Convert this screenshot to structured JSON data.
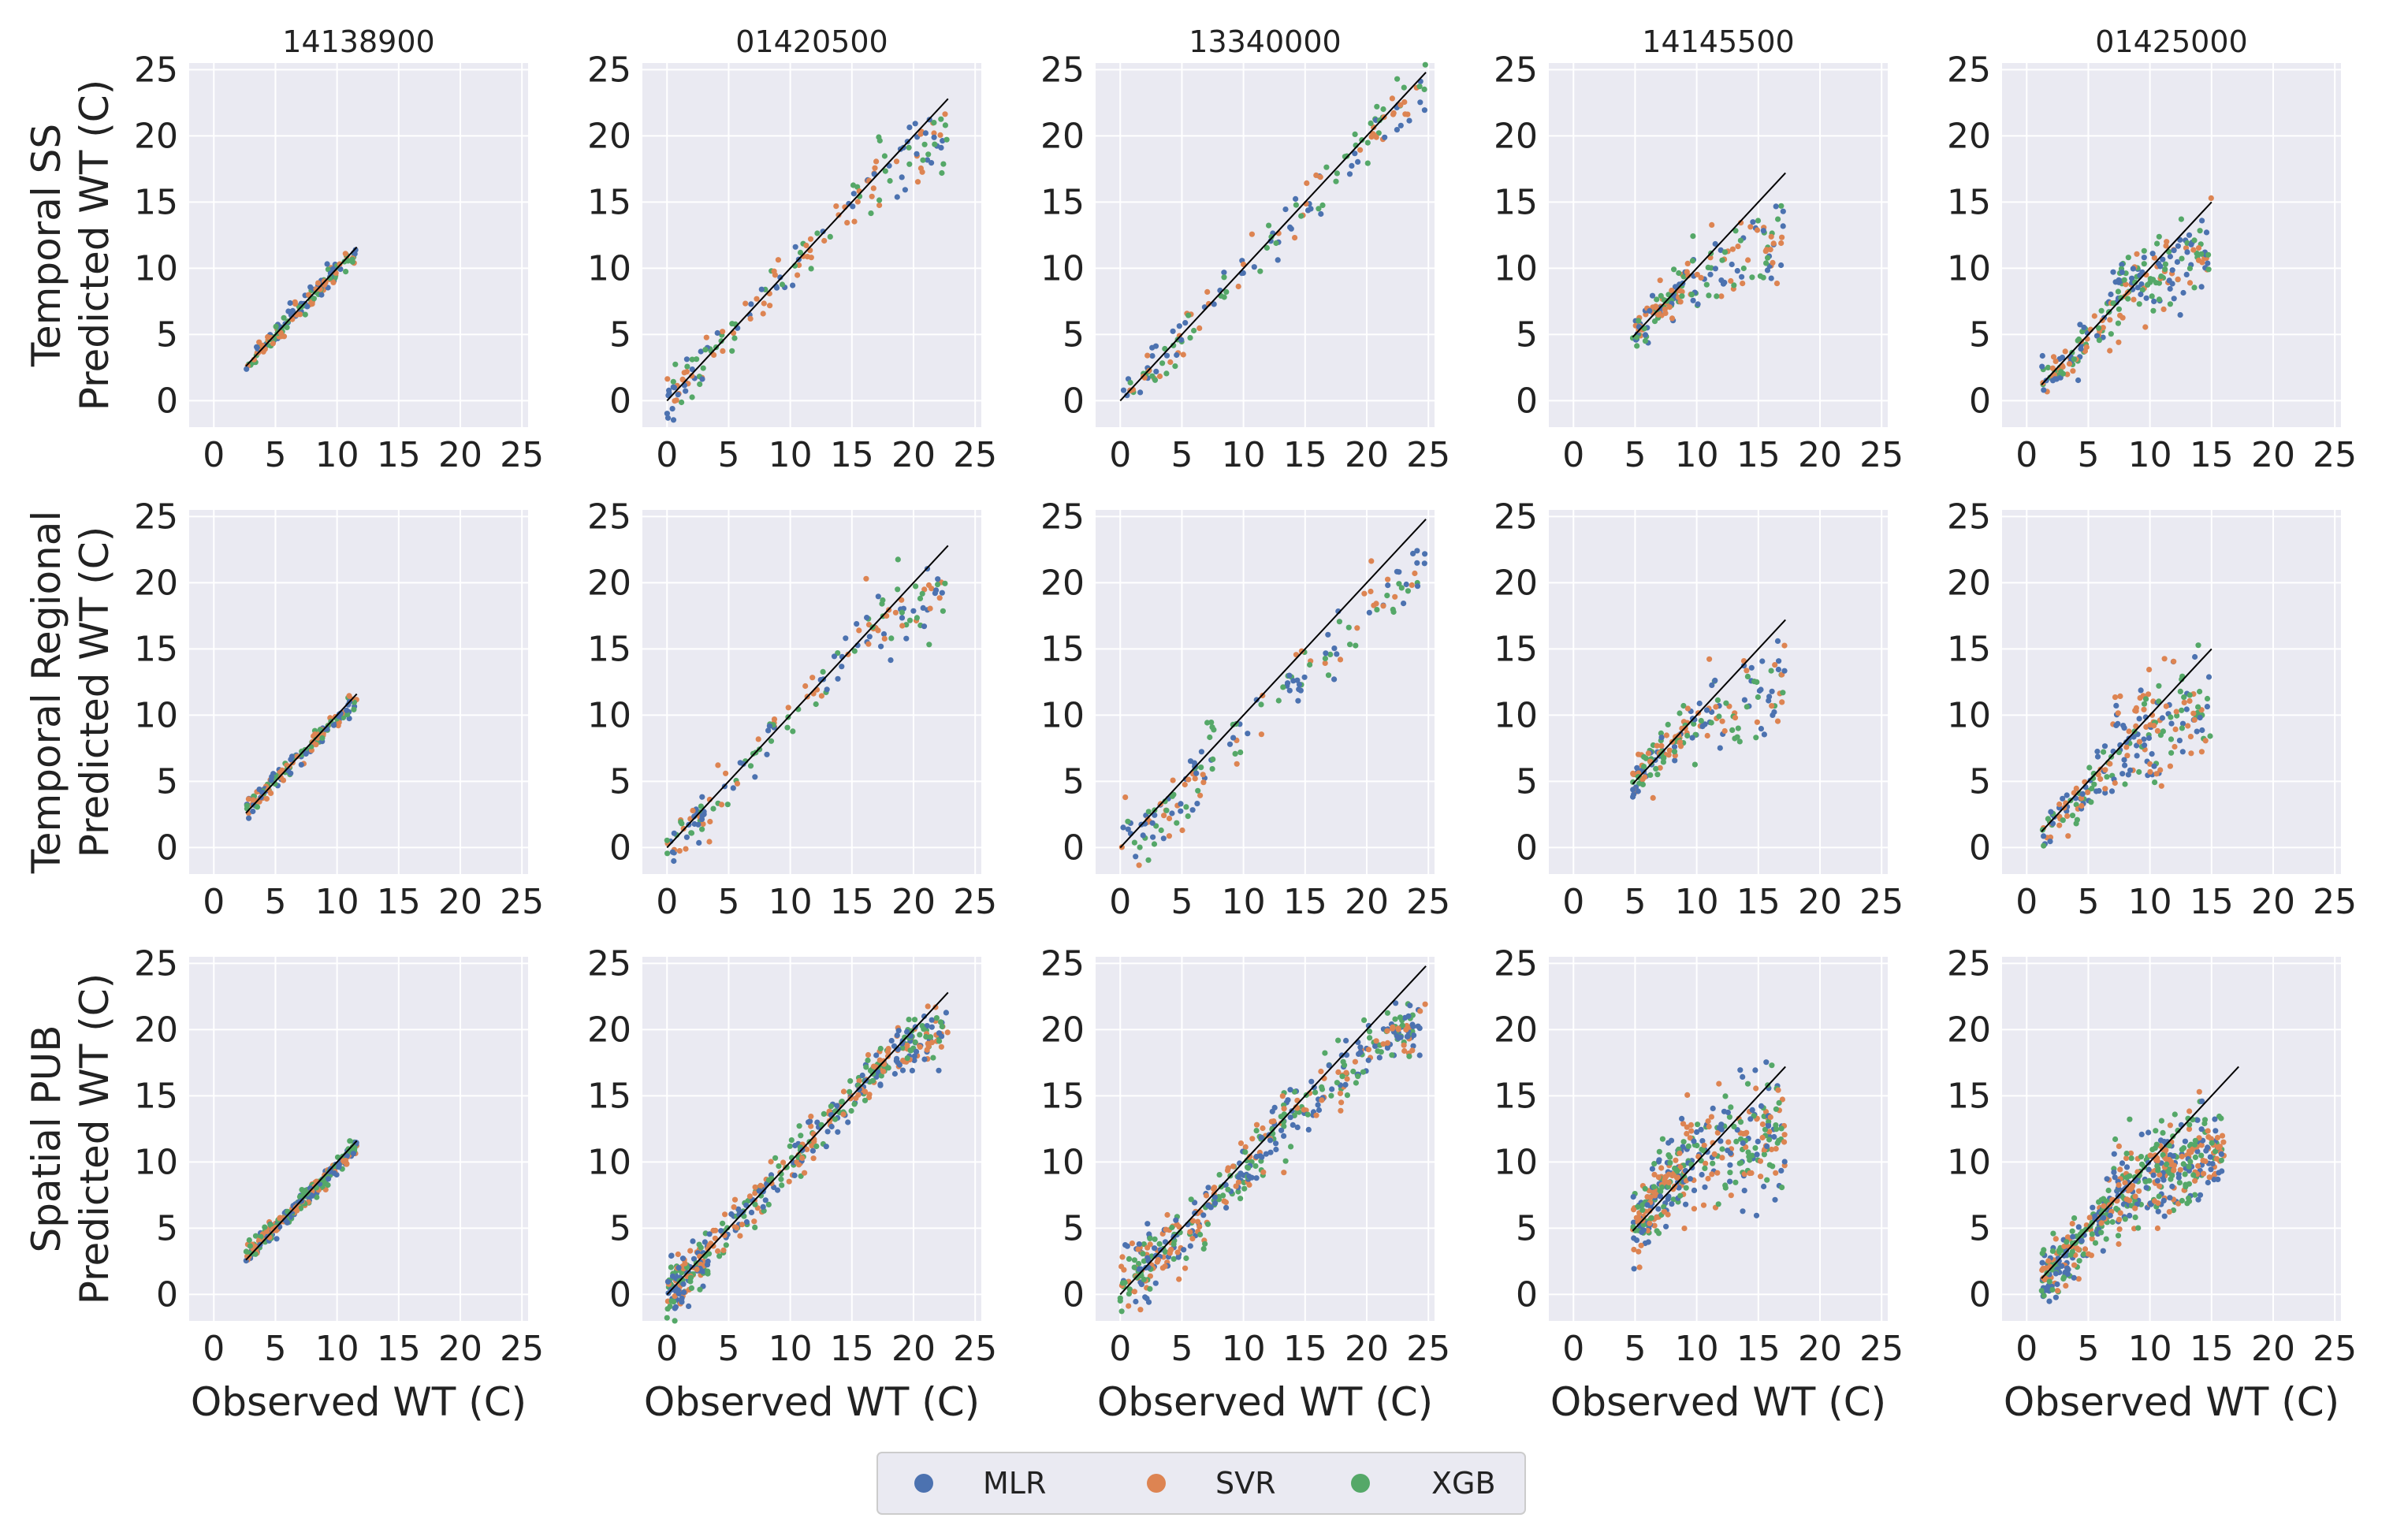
{
  "colors": {
    "panel_bg": "#eaeaf2",
    "grid": "#ffffff",
    "MLR": "#4c72b0",
    "SVR": "#dd8452",
    "XGB": "#55a868",
    "one_to_one_line": "#000000"
  },
  "x_axis_label": "Observed WT (C)",
  "y_axis_label": "Predicted WT (C)",
  "column_titles": [
    "14138900",
    "01420500",
    "13340000",
    "14145500",
    "01425000"
  ],
  "row_labels": [
    "Temporal SS",
    "Temporal Regional",
    "Spatial PUB"
  ],
  "legend": {
    "placement": "bottom-center",
    "entries": [
      {
        "label": "MLR",
        "color": "#4c72b0"
      },
      {
        "label": "SVR",
        "color": "#dd8452"
      },
      {
        "label": "XGB",
        "color": "#55a868"
      }
    ]
  },
  "chart_data": {
    "type": "scatter",
    "layout": "3 rows x 5 columns of scatter panels",
    "xlabel": "Observed WT (C)",
    "ylabel": "Predicted WT (C)",
    "xlim": [
      -2,
      25.5
    ],
    "ylim": [
      -2,
      25.5
    ],
    "xticks": [
      0,
      5,
      10,
      15,
      20,
      25
    ],
    "yticks": [
      0,
      5,
      10,
      15,
      20,
      25
    ],
    "grid": true,
    "legend_position": "bottom-center",
    "series": [
      {
        "name": "MLR"
      },
      {
        "name": "SVR"
      },
      {
        "name": "XGB"
      }
    ],
    "panels": [
      {
        "row": "Temporal SS",
        "column": "14138900",
        "one_to_one": [
          2.6,
          11.6
        ],
        "point_groups": [
          {
            "x": [
              2.6,
              11.6
            ],
            "y": [
              2.7,
              11.4
            ],
            "n": 150,
            "spread": 0.35
          },
          {
            "x": [
              5,
              10
            ],
            "y": [
              5.2,
              10.2
            ],
            "n": 20,
            "spread": 0.5
          }
        ]
      },
      {
        "row": "Temporal SS",
        "column": "01420500",
        "one_to_one": [
          0,
          22.8
        ],
        "point_groups": [
          {
            "x": [
              0,
              3
            ],
            "y": [
              0,
              2.8
            ],
            "n": 40,
            "spread": 0.8
          },
          {
            "x": [
              3,
              16
            ],
            "y": [
              3,
              16
            ],
            "n": 70,
            "spread": 0.8
          },
          {
            "x": [
              16,
              22.8
            ],
            "y": [
              16,
              20
            ],
            "n": 60,
            "spread": 1.2
          }
        ]
      },
      {
        "row": "Temporal SS",
        "column": "13340000",
        "one_to_one": [
          0,
          24.8
        ],
        "point_groups": [
          {
            "x": [
              0,
              6
            ],
            "y": [
              0,
              5.5
            ],
            "n": 50,
            "spread": 0.9
          },
          {
            "x": [
              6,
              20
            ],
            "y": [
              6,
              19.5
            ],
            "n": 60,
            "spread": 1.0
          },
          {
            "x": [
              20,
              24.8
            ],
            "y": [
              20,
              23.5
            ],
            "n": 40,
            "spread": 1.0
          }
        ]
      },
      {
        "row": "Temporal SS",
        "column": "14145500",
        "one_to_one": [
          4.8,
          17.2
        ],
        "point_groups": [
          {
            "x": [
              4.8,
              9
            ],
            "y": [
              5,
              8.5
            ],
            "n": 90,
            "spread": 0.8
          },
          {
            "x": [
              9,
              17.2
            ],
            "y": [
              9,
              12.5
            ],
            "n": 90,
            "spread": 1.6
          }
        ]
      },
      {
        "row": "Temporal SS",
        "column": "01425000",
        "one_to_one": [
          1.2,
          15
        ],
        "point_groups": [
          {
            "x": [
              1.2,
              7
            ],
            "y": [
              1.4,
              6.5
            ],
            "n": 80,
            "spread": 0.9
          },
          {
            "x": [
              7,
              15
            ],
            "y": [
              8,
              11.5
            ],
            "n": 140,
            "spread": 1.6
          }
        ]
      },
      {
        "row": "Temporal Regional",
        "column": "14138900",
        "one_to_one": [
          2.6,
          11.6
        ],
        "point_groups": [
          {
            "x": [
              2.6,
              11.6
            ],
            "y": [
              2.8,
              11.2
            ],
            "n": 150,
            "spread": 0.35
          }
        ]
      },
      {
        "row": "Temporal Regional",
        "column": "01420500",
        "one_to_one": [
          0,
          22.8
        ],
        "point_groups": [
          {
            "x": [
              0,
              3
            ],
            "y": [
              0,
              2.6
            ],
            "n": 40,
            "spread": 0.9
          },
          {
            "x": [
              3,
              16
            ],
            "y": [
              3,
              16
            ],
            "n": 60,
            "spread": 0.9
          },
          {
            "x": [
              16,
              22.8
            ],
            "y": [
              16,
              19.5
            ],
            "n": 60,
            "spread": 1.3
          }
        ]
      },
      {
        "row": "Temporal Regional",
        "column": "13340000",
        "one_to_one": [
          0,
          24.8
        ],
        "point_groups": [
          {
            "x": [
              0,
              7
            ],
            "y": [
              0.5,
              5.5
            ],
            "n": 70,
            "spread": 1.2
          },
          {
            "x": [
              7,
              20
            ],
            "y": [
              7,
              17
            ],
            "n": 60,
            "spread": 1.2
          },
          {
            "x": [
              20,
              24.8
            ],
            "y": [
              18,
              21
            ],
            "n": 30,
            "spread": 1.0
          }
        ]
      },
      {
        "row": "Temporal Regional",
        "column": "14145500",
        "one_to_one": [
          4.8,
          17.2
        ],
        "point_groups": [
          {
            "x": [
              4.8,
              9
            ],
            "y": [
              5,
              9
            ],
            "n": 90,
            "spread": 0.9
          },
          {
            "x": [
              9,
              17.2
            ],
            "y": [
              9,
              11.5
            ],
            "n": 90,
            "spread": 1.7
          }
        ]
      },
      {
        "row": "Temporal Regional",
        "column": "01425000",
        "one_to_one": [
          1.2,
          15
        ],
        "point_groups": [
          {
            "x": [
              1.2,
              7
            ],
            "y": [
              1.2,
              6
            ],
            "n": 80,
            "spread": 1.0
          },
          {
            "x": [
              7,
              15
            ],
            "y": [
              8,
              10.5
            ],
            "n": 140,
            "spread": 1.8
          }
        ]
      },
      {
        "row": "Spatial PUB",
        "column": "14138900",
        "one_to_one": [
          2.6,
          11.6
        ],
        "point_groups": [
          {
            "x": [
              2.6,
              11.6
            ],
            "y": [
              2.8,
              11.2
            ],
            "n": 300,
            "spread": 0.35
          }
        ]
      },
      {
        "row": "Spatial PUB",
        "column": "01420500",
        "one_to_one": [
          0,
          22.8
        ],
        "point_groups": [
          {
            "x": [
              0,
              3
            ],
            "y": [
              0,
              2.6
            ],
            "n": 120,
            "spread": 0.9
          },
          {
            "x": [
              3,
              16
            ],
            "y": [
              3,
              16
            ],
            "n": 200,
            "spread": 0.8
          },
          {
            "x": [
              16,
              22.8
            ],
            "y": [
              16,
              20.5
            ],
            "n": 150,
            "spread": 1.0
          }
        ]
      },
      {
        "row": "Spatial PUB",
        "column": "13340000",
        "one_to_one": [
          0,
          24.8
        ],
        "point_groups": [
          {
            "x": [
              0,
              7
            ],
            "y": [
              0.5,
              6
            ],
            "n": 160,
            "spread": 1.3
          },
          {
            "x": [
              7,
              20
            ],
            "y": [
              7,
              18.5
            ],
            "n": 200,
            "spread": 1.2
          },
          {
            "x": [
              20,
              24.8
            ],
            "y": [
              19,
              20.5
            ],
            "n": 80,
            "spread": 1.0
          }
        ]
      },
      {
        "row": "Spatial PUB",
        "column": "14145500",
        "one_to_one": [
          4.8,
          17.2
        ],
        "point_groups": [
          {
            "x": [
              4.8,
              9
            ],
            "y": [
              4.8,
              10
            ],
            "n": 180,
            "spread": 1.3
          },
          {
            "x": [
              9,
              17.2
            ],
            "y": [
              10,
              12.5
            ],
            "n": 200,
            "spread": 2.0
          }
        ]
      },
      {
        "row": "Spatial PUB",
        "column": "01425000",
        "one_to_one": [
          1.2,
          17.2
        ],
        "point_groups": [
          {
            "x": [
              1.2,
              7
            ],
            "y": [
              1.2,
              6.5
            ],
            "n": 200,
            "spread": 1.1
          },
          {
            "x": [
              7,
              16
            ],
            "y": [
              8,
              11
            ],
            "n": 320,
            "spread": 1.7
          }
        ]
      }
    ]
  }
}
